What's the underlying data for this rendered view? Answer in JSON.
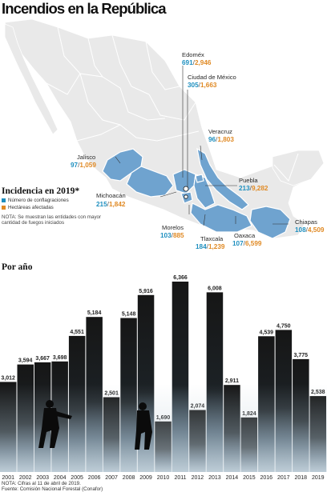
{
  "title": "Incendios en la República",
  "legend": {
    "title": "Incidencia en 2019*",
    "items": [
      {
        "label": "Número de conflagraciones",
        "color": "#1e8fbf"
      },
      {
        "label": "Hectáreas afectadas",
        "color": "#e08a25"
      }
    ],
    "note": "NOTA: Se muestran las entidades con mayor cantidad de fuegos iniciados"
  },
  "colors": {
    "fires": "#1e8fbf",
    "hectares": "#e08a25",
    "highlight_state": "#6fa3cf",
    "land": "#e9e9e9",
    "bar_dark": "#181818",
    "bar_light": "#8ea6b6"
  },
  "states": [
    {
      "name": "Edoméx",
      "fires": "691",
      "hectares": "2,946"
    },
    {
      "name": "Ciudad de México",
      "fires": "305",
      "hectares": "1,663"
    },
    {
      "name": "Veracruz",
      "fires": "96",
      "hectares": "1,803"
    },
    {
      "name": "Jalisco",
      "fires": "97",
      "hectares": "1,059"
    },
    {
      "name": "Puebla",
      "fires": "213",
      "hectares": "9,282"
    },
    {
      "name": "Michoacán",
      "fires": "215",
      "hectares": "1,842"
    },
    {
      "name": "Chiapas",
      "fires": "108",
      "hectares": "4,509"
    },
    {
      "name": "Morelos",
      "fires": "103",
      "hectares": "885"
    },
    {
      "name": "Oaxaca",
      "fires": "107",
      "hectares": "6,599"
    },
    {
      "name": "Tlaxcala",
      "fires": "184",
      "hectares": "1,239"
    }
  ],
  "section2_title": "Por año",
  "chart_data": {
    "type": "bar",
    "title": "Por año",
    "categories": [
      "2001",
      "2002",
      "2003",
      "2004",
      "2005",
      "2006",
      "2007",
      "2008",
      "2009",
      "2010",
      "2011",
      "2012",
      "2013",
      "2014",
      "2015",
      "2016",
      "2017",
      "2018",
      "2019"
    ],
    "values": [
      3012,
      3594,
      3667,
      3698,
      4551,
      5184,
      2501,
      5148,
      5916,
      1690,
      6366,
      2074,
      6008,
      2911,
      1824,
      4539,
      4750,
      3775,
      2538
    ],
    "value_labels": [
      "3,012",
      "3,594",
      "3,667",
      "3,698",
      "4,551",
      "5,184",
      "2,501",
      "5,148",
      "5,916",
      "1,690",
      "6,366",
      "2,074",
      "6,008",
      "2,911",
      "1,824",
      "4,539",
      "4,750",
      "3,775",
      "2,538"
    ],
    "ylim": [
      0,
      6500
    ],
    "grid": false,
    "legend": "none"
  },
  "footer": {
    "note": "NOTA: Cifras al 11 de abril de 2019.",
    "source": "Fuente: Comisión Nacional Forestal (Conafor)"
  }
}
